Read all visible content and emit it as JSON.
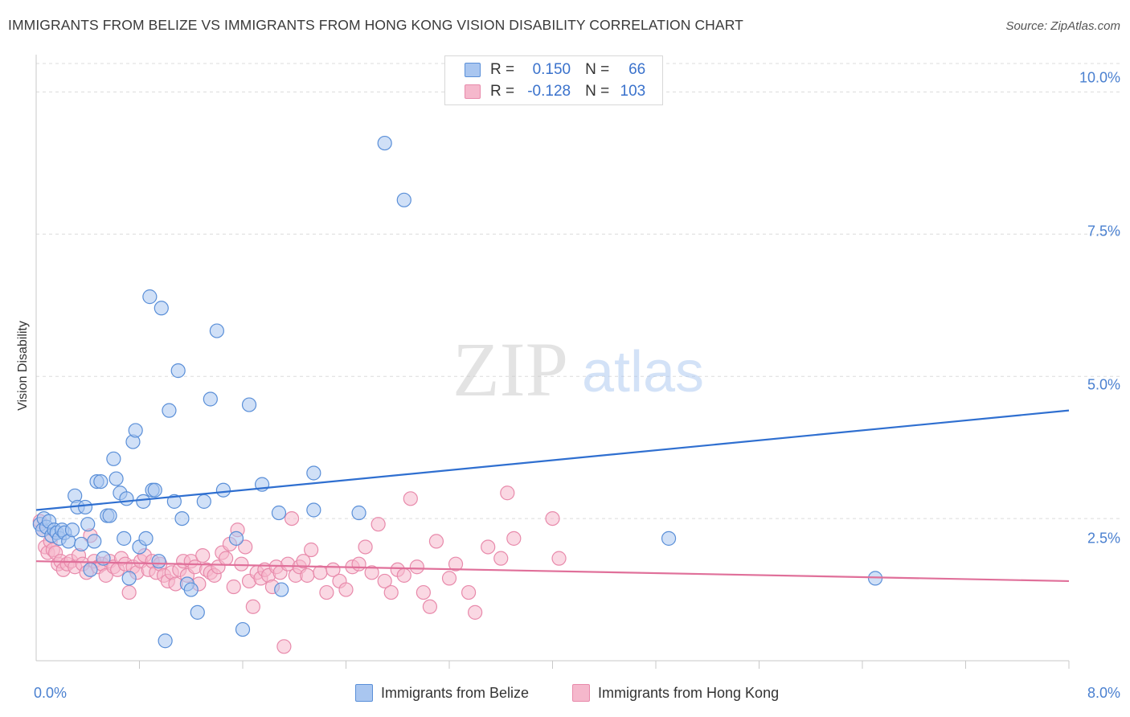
{
  "title": "IMMIGRANTS FROM BELIZE VS IMMIGRANTS FROM HONG KONG VISION DISABILITY CORRELATION CHART",
  "source": "Source: ZipAtlas.com",
  "watermark": {
    "zip": "ZIP",
    "atlas": "atlas"
  },
  "legend": {
    "rows": [
      {
        "r_label": "R =",
        "r_value": "0.150",
        "n_label": "N =",
        "n_value": "66"
      },
      {
        "r_label": "R =",
        "r_value": "-0.128",
        "n_label": "N =",
        "n_value": "103"
      }
    ]
  },
  "colors": {
    "belize_fill": "#a9c6f0",
    "belize_stroke": "#5a8fd8",
    "belize_line": "#2f6fd0",
    "hk_fill": "#f5b8cc",
    "hk_stroke": "#e88aab",
    "hk_line": "#e0709a",
    "grid": "#dcdcdc",
    "axis": "#c8c8c8",
    "tick_text": "#4a80d0"
  },
  "chart_data": {
    "type": "scatter",
    "title": "IMMIGRANTS FROM BELIZE VS IMMIGRANTS FROM HONG KONG VISION DISABILITY CORRELATION CHART",
    "xlabel": "",
    "ylabel": "Vision Disability",
    "xlim": [
      0,
      8
    ],
    "ylim": [
      0,
      10.5
    ],
    "x_tick_labels": [
      "0.0%",
      "8.0%"
    ],
    "y_ticks": [
      2.5,
      5.0,
      7.5,
      10.0
    ],
    "y_tick_labels": [
      "2.5%",
      "5.0%",
      "7.5%",
      "10.0%"
    ],
    "grid": true,
    "legend_position": "bottom",
    "series": [
      {
        "name": "Immigrants from Belize",
        "R": 0.15,
        "N": 66,
        "trend": {
          "x": [
            0,
            8
          ],
          "y": [
            2.65,
            4.4
          ]
        },
        "points": [
          [
            0.03,
            2.4
          ],
          [
            0.05,
            2.3
          ],
          [
            0.06,
            2.5
          ],
          [
            0.08,
            2.35
          ],
          [
            0.1,
            2.45
          ],
          [
            0.12,
            2.2
          ],
          [
            0.14,
            2.3
          ],
          [
            0.16,
            2.25
          ],
          [
            0.18,
            2.15
          ],
          [
            0.2,
            2.3
          ],
          [
            0.22,
            2.25
          ],
          [
            0.25,
            2.1
          ],
          [
            0.28,
            2.3
          ],
          [
            0.3,
            2.9
          ],
          [
            0.32,
            2.7
          ],
          [
            0.35,
            2.05
          ],
          [
            0.38,
            2.7
          ],
          [
            0.4,
            2.4
          ],
          [
            0.42,
            1.6
          ],
          [
            0.45,
            2.1
          ],
          [
            0.47,
            3.15
          ],
          [
            0.5,
            3.15
          ],
          [
            0.52,
            1.8
          ],
          [
            0.55,
            2.55
          ],
          [
            0.57,
            2.55
          ],
          [
            0.6,
            3.55
          ],
          [
            0.62,
            3.2
          ],
          [
            0.65,
            2.95
          ],
          [
            0.68,
            2.15
          ],
          [
            0.7,
            2.85
          ],
          [
            0.72,
            1.45
          ],
          [
            0.75,
            3.85
          ],
          [
            0.77,
            4.05
          ],
          [
            0.8,
            2.0
          ],
          [
            0.83,
            2.8
          ],
          [
            0.85,
            2.15
          ],
          [
            0.88,
            6.4
          ],
          [
            0.9,
            3.0
          ],
          [
            0.92,
            3.0
          ],
          [
            0.95,
            1.75
          ],
          [
            0.97,
            6.2
          ],
          [
            1.0,
            0.35
          ],
          [
            1.03,
            4.4
          ],
          [
            1.07,
            2.8
          ],
          [
            1.1,
            5.1
          ],
          [
            1.13,
            2.5
          ],
          [
            1.17,
            1.35
          ],
          [
            1.2,
            1.25
          ],
          [
            1.25,
            0.85
          ],
          [
            1.3,
            2.8
          ],
          [
            1.35,
            4.6
          ],
          [
            1.4,
            5.8
          ],
          [
            1.45,
            3.0
          ],
          [
            1.55,
            2.15
          ],
          [
            1.6,
            0.55
          ],
          [
            1.65,
            4.5
          ],
          [
            1.75,
            3.1
          ],
          [
            1.88,
            2.6
          ],
          [
            1.9,
            1.25
          ],
          [
            2.15,
            3.3
          ],
          [
            2.15,
            2.65
          ],
          [
            2.5,
            2.6
          ],
          [
            2.7,
            9.1
          ],
          [
            2.85,
            8.1
          ],
          [
            4.9,
            2.15
          ],
          [
            6.5,
            1.45
          ]
        ]
      },
      {
        "name": "Immigrants from Hong Kong",
        "R": -0.128,
        "N": 103,
        "trend": {
          "x": [
            0,
            8
          ],
          "y": [
            1.75,
            1.4
          ]
        },
        "points": [
          [
            0.03,
            2.45
          ],
          [
            0.05,
            2.3
          ],
          [
            0.07,
            2.0
          ],
          [
            0.09,
            1.9
          ],
          [
            0.11,
            2.1
          ],
          [
            0.13,
            1.95
          ],
          [
            0.15,
            1.9
          ],
          [
            0.17,
            1.7
          ],
          [
            0.19,
            1.75
          ],
          [
            0.21,
            1.6
          ],
          [
            0.24,
            1.7
          ],
          [
            0.27,
            1.75
          ],
          [
            0.3,
            1.65
          ],
          [
            0.33,
            1.85
          ],
          [
            0.36,
            1.7
          ],
          [
            0.39,
            1.55
          ],
          [
            0.42,
            2.2
          ],
          [
            0.45,
            1.75
          ],
          [
            0.48,
            1.65
          ],
          [
            0.51,
            1.7
          ],
          [
            0.54,
            1.5
          ],
          [
            0.57,
            1.75
          ],
          [
            0.6,
            1.65
          ],
          [
            0.63,
            1.6
          ],
          [
            0.66,
            1.8
          ],
          [
            0.69,
            1.7
          ],
          [
            0.72,
            1.2
          ],
          [
            0.75,
            1.65
          ],
          [
            0.78,
            1.55
          ],
          [
            0.81,
            1.75
          ],
          [
            0.84,
            1.85
          ],
          [
            0.87,
            1.6
          ],
          [
            0.9,
            1.75
          ],
          [
            0.93,
            1.55
          ],
          [
            0.96,
            1.7
          ],
          [
            0.99,
            1.5
          ],
          [
            1.02,
            1.4
          ],
          [
            1.05,
            1.55
          ],
          [
            1.08,
            1.35
          ],
          [
            1.11,
            1.6
          ],
          [
            1.14,
            1.75
          ],
          [
            1.17,
            1.5
          ],
          [
            1.2,
            1.75
          ],
          [
            1.23,
            1.65
          ],
          [
            1.26,
            1.35
          ],
          [
            1.29,
            1.85
          ],
          [
            1.32,
            1.6
          ],
          [
            1.35,
            1.55
          ],
          [
            1.38,
            1.5
          ],
          [
            1.41,
            1.65
          ],
          [
            1.44,
            1.9
          ],
          [
            1.47,
            1.8
          ],
          [
            1.5,
            2.05
          ],
          [
            1.53,
            1.3
          ],
          [
            1.56,
            2.3
          ],
          [
            1.59,
            1.7
          ],
          [
            1.62,
            2.0
          ],
          [
            1.65,
            1.4
          ],
          [
            1.68,
            0.95
          ],
          [
            1.71,
            1.55
          ],
          [
            1.74,
            1.45
          ],
          [
            1.77,
            1.6
          ],
          [
            1.8,
            1.5
          ],
          [
            1.83,
            1.3
          ],
          [
            1.86,
            1.65
          ],
          [
            1.89,
            1.55
          ],
          [
            1.92,
            0.25
          ],
          [
            1.95,
            1.7
          ],
          [
            1.98,
            2.5
          ],
          [
            2.01,
            1.5
          ],
          [
            2.04,
            1.65
          ],
          [
            2.07,
            1.75
          ],
          [
            2.1,
            1.5
          ],
          [
            2.13,
            1.95
          ],
          [
            2.2,
            1.55
          ],
          [
            2.25,
            1.2
          ],
          [
            2.3,
            1.6
          ],
          [
            2.35,
            1.4
          ],
          [
            2.4,
            1.25
          ],
          [
            2.45,
            1.65
          ],
          [
            2.5,
            1.7
          ],
          [
            2.55,
            2.0
          ],
          [
            2.6,
            1.55
          ],
          [
            2.65,
            2.4
          ],
          [
            2.7,
            1.4
          ],
          [
            2.75,
            1.2
          ],
          [
            2.8,
            1.6
          ],
          [
            2.85,
            1.5
          ],
          [
            2.9,
            2.85
          ],
          [
            2.95,
            1.65
          ],
          [
            3.0,
            1.2
          ],
          [
            3.05,
            0.95
          ],
          [
            3.1,
            2.1
          ],
          [
            3.2,
            1.45
          ],
          [
            3.25,
            1.7
          ],
          [
            3.35,
            1.2
          ],
          [
            3.4,
            0.85
          ],
          [
            3.5,
            2.0
          ],
          [
            3.6,
            1.8
          ],
          [
            3.65,
            2.95
          ],
          [
            3.7,
            2.15
          ],
          [
            4.0,
            2.5
          ],
          [
            4.05,
            1.8
          ]
        ]
      }
    ]
  },
  "bottom_legend": [
    {
      "label": "Immigrants from Belize"
    },
    {
      "label": "Immigrants from Hong Kong"
    }
  ]
}
